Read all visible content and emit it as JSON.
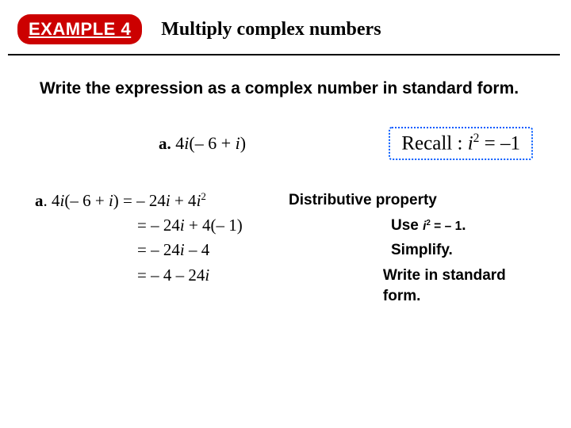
{
  "header": {
    "badge": "EXAMPLE 4",
    "title": "Multiply complex numbers"
  },
  "instruction": "Write the expression as a complex number in standard form.",
  "problem": {
    "label": "a.",
    "expr_lead": "4",
    "expr_var1": "i",
    "expr_paren": "(– 6 + ",
    "expr_var2": "i",
    "expr_close": ")"
  },
  "recall": {
    "prefix": "Recall : ",
    "body_lead": "  ",
    "var": "i",
    "sup": "2",
    "eq": " = –1"
  },
  "steps": [
    {
      "left_prefix": "a",
      "left_dot": ".  ",
      "lhs_1": "4",
      "lhs_v1": "i",
      "lhs_2": "(– 6 + ",
      "lhs_v2": "i",
      "lhs_3": ") = – 24",
      "lhs_v3": "i",
      "lhs_4": " + 4",
      "lhs_v4": "i",
      "lhs_sup": "2",
      "right": "Distributive property"
    },
    {
      "indent": true,
      "lhs_1": "= – 24",
      "lhs_v1": "i",
      "lhs_2": " + 4(– 1)",
      "right_1": "Use ",
      "r_var": "i",
      "r_sup": "2",
      "r_tail": " = – 1",
      "r_dot": "."
    },
    {
      "indent": true,
      "lhs_1": "= – 24",
      "lhs_v1": "i",
      "lhs_2": " – 4",
      "right": "Simplify."
    },
    {
      "indent": true,
      "lhs_1": "= – 4 – 24",
      "lhs_v1": "i",
      "right": "Write in standard form."
    }
  ],
  "colors": {
    "badge_bg": "#cc0000",
    "recall_border": "#005aff",
    "text": "#000000"
  }
}
